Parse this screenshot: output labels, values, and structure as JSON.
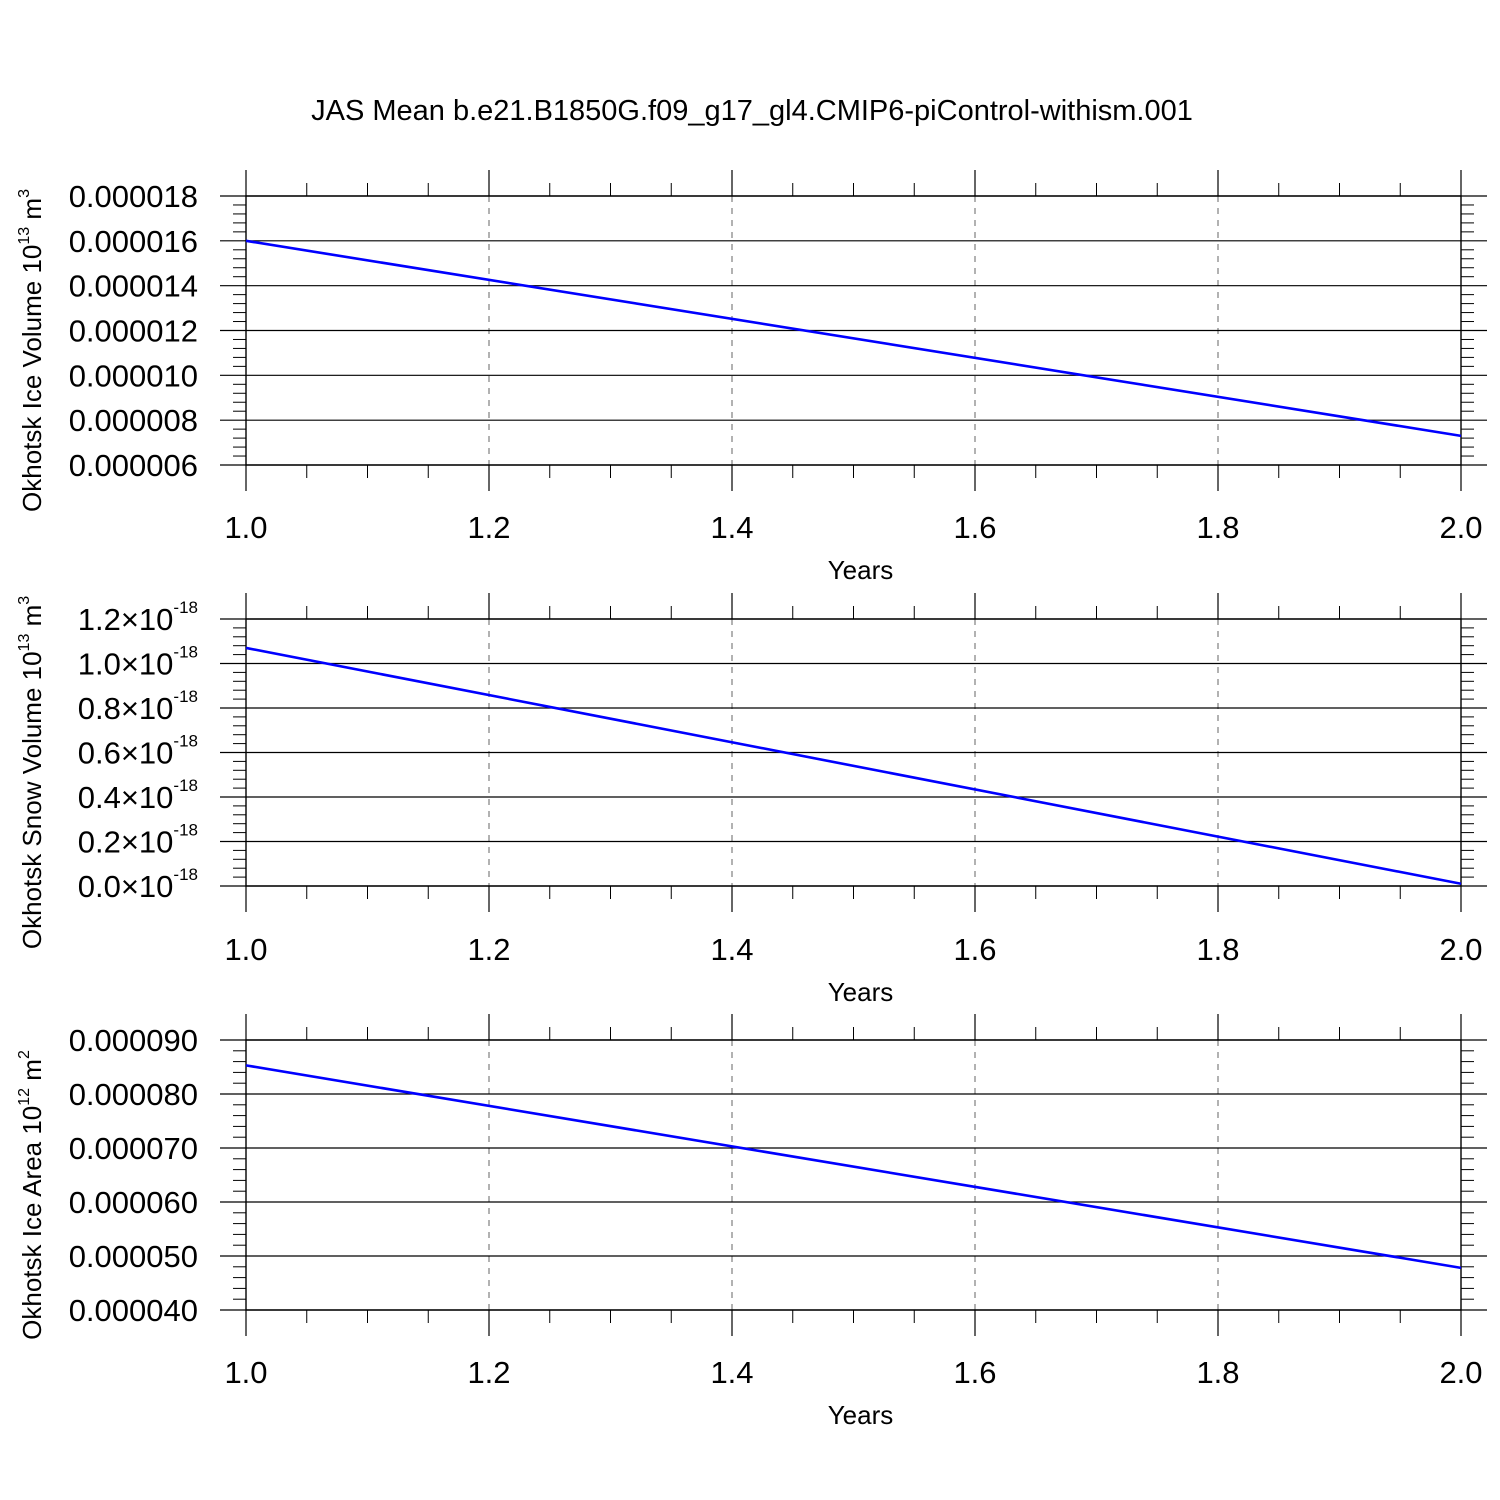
{
  "title": "JAS Mean b.e21.B1850G.f09_g17_gl4.CMIP6-piControl-withism.001",
  "line_color": "#0000ff",
  "chart_data": [
    {
      "type": "line",
      "xlabel": "Years",
      "ylabel": "Okhotsk Ice Volume 10",
      "ylabel_exponent": "13",
      "ylabel_unit": " m",
      "ylabel_unit_exponent": "3",
      "xlim": [
        1.0,
        2.0
      ],
      "ylim": [
        6e-06,
        1.8e-05
      ],
      "x_ticks": [
        "1.0",
        "1.2",
        "1.4",
        "1.6",
        "1.8",
        "2.0"
      ],
      "y_ticks": [
        {
          "value": 6e-06,
          "label": "0.000006"
        },
        {
          "value": 8e-06,
          "label": "0.000008"
        },
        {
          "value": 1e-05,
          "label": "0.000010"
        },
        {
          "value": 1.2e-05,
          "label": "0.000012"
        },
        {
          "value": 1.4e-05,
          "label": "0.000014"
        },
        {
          "value": 1.6e-05,
          "label": "0.000016"
        },
        {
          "value": 1.8e-05,
          "label": "0.000018"
        }
      ],
      "grid": "vertical dashed",
      "x": [
        1.0,
        2.0
      ],
      "y": [
        1.6e-05,
        7.3e-06
      ]
    },
    {
      "type": "line",
      "xlabel": "Years",
      "ylabel": "Okhotsk Snow Volume 10",
      "ylabel_exponent": "13",
      "ylabel_unit": " m",
      "ylabel_unit_exponent": "3",
      "xlim": [
        1.0,
        2.0
      ],
      "ylim": [
        0.0,
        1.2e-18
      ],
      "x_ticks": [
        "1.0",
        "1.2",
        "1.4",
        "1.6",
        "1.8",
        "2.0"
      ],
      "y_ticks": [
        {
          "value": 0.0,
          "mantissa": "0.0",
          "times": "×10",
          "exp": "-18"
        },
        {
          "value": 2e-19,
          "mantissa": "0.2",
          "times": "×10",
          "exp": "-18"
        },
        {
          "value": 4e-19,
          "mantissa": "0.4",
          "times": "×10",
          "exp": "-18"
        },
        {
          "value": 6e-19,
          "mantissa": "0.6",
          "times": "×10",
          "exp": "-18"
        },
        {
          "value": 8e-19,
          "mantissa": "0.8",
          "times": "×10",
          "exp": "-18"
        },
        {
          "value": 1e-18,
          "mantissa": "1.0",
          "times": "×10",
          "exp": "-18"
        },
        {
          "value": 1.2e-18,
          "mantissa": "1.2",
          "times": "×10",
          "exp": "-18"
        }
      ],
      "grid": "vertical dashed",
      "x": [
        1.0,
        2.0
      ],
      "y": [
        1.07e-18,
        1e-20
      ]
    },
    {
      "type": "line",
      "xlabel": "Years",
      "ylabel": "Okhotsk Ice Area 10",
      "ylabel_exponent": "12",
      "ylabel_unit": " m",
      "ylabel_unit_exponent": "2",
      "xlim": [
        1.0,
        2.0
      ],
      "ylim": [
        4e-05,
        9e-05
      ],
      "x_ticks": [
        "1.0",
        "1.2",
        "1.4",
        "1.6",
        "1.8",
        "2.0"
      ],
      "y_ticks": [
        {
          "value": 4e-05,
          "label": "0.000040"
        },
        {
          "value": 5e-05,
          "label": "0.000050"
        },
        {
          "value": 6e-05,
          "label": "0.000060"
        },
        {
          "value": 7e-05,
          "label": "0.000070"
        },
        {
          "value": 8e-05,
          "label": "0.000080"
        },
        {
          "value": 9e-05,
          "label": "0.000090"
        }
      ],
      "grid": "vertical dashed",
      "x": [
        1.0,
        2.0
      ],
      "y": [
        8.53e-05,
        4.78e-05
      ]
    }
  ]
}
